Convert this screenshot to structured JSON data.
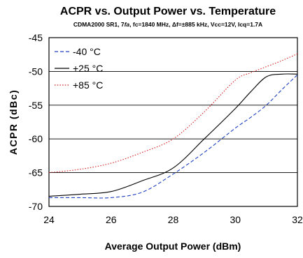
{
  "chart_data": {
    "type": "line",
    "title": "ACPR vs. Output Power vs. Temperature",
    "subtitle": "CDMA2000 SR1, 7fa, fc=1840 MHz, Δf=±885 kHz, Vcc=12V, Icq=1.7A",
    "xlabel": "Average Output Power (dBm)",
    "ylabel": "ACPR (dBc)",
    "xlim": [
      24,
      32
    ],
    "ylim": [
      -70,
      -45
    ],
    "xticks": [
      "24",
      "26",
      "28",
      "30",
      "32"
    ],
    "yticks": [
      "-45",
      "-50",
      "-55",
      "-60",
      "-65",
      "-70"
    ],
    "grid": "horizontal",
    "legend_position": "top-left",
    "series": [
      {
        "name": "-40 °C",
        "color": "#1f3fbf",
        "style": "dashed",
        "x": [
          24,
          25,
          26,
          27,
          28,
          29,
          30,
          30.5,
          31,
          31.5,
          32
        ],
        "y": [
          -68.7,
          -68.7,
          -68.7,
          -67.9,
          -65.2,
          -62.0,
          -58.4,
          -56.8,
          -55.0,
          -52.7,
          -50.5
        ]
      },
      {
        "name": "+25 °C",
        "color": "#000000",
        "style": "solid",
        "x": [
          24,
          25,
          26,
          27,
          28,
          29,
          30,
          30.5,
          31,
          31.5,
          32
        ],
        "y": [
          -68.5,
          -68.2,
          -67.8,
          -66.2,
          -64.3,
          -60.0,
          -55.5,
          -53.0,
          -50.8,
          -50.4,
          -50.4
        ]
      },
      {
        "name": "+85 °C",
        "color": "#d42020",
        "style": "dotted",
        "x": [
          24,
          25,
          26,
          27,
          28,
          29,
          30,
          30.5,
          31,
          31.5,
          32
        ],
        "y": [
          -65.0,
          -64.5,
          -63.6,
          -62.0,
          -60.0,
          -56.0,
          -51.3,
          -50.2,
          -49.3,
          -48.4,
          -47.4
        ]
      }
    ]
  }
}
